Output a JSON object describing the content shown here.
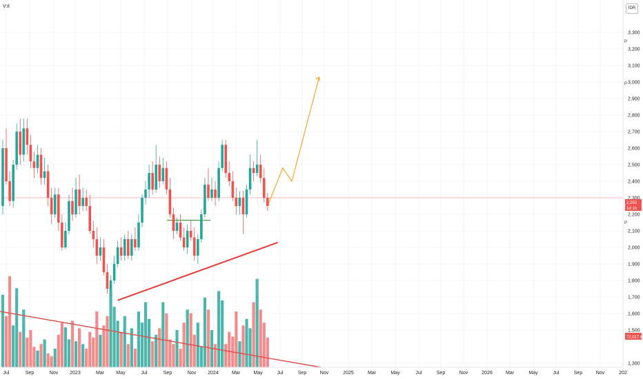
{
  "volume_label": "Vol",
  "currency_button": "IDR",
  "colors": {
    "up": "#26a69a",
    "down": "#ef5350",
    "vol_up": "#4db6ac",
    "vol_down": "#f28b8b",
    "projection": "#f5a623",
    "support": "#e53935",
    "flat_level": "#43a047",
    "price_line": "#f7b7b7"
  },
  "chart_data": {
    "type": "candlestick",
    "y_ticks": [
      "3,300",
      "3,200",
      "3,100",
      "3,000",
      "2,900",
      "2,800",
      "2,700",
      "2,600",
      "2,500",
      "2,400",
      "2,300",
      "2,200",
      "2,100",
      "2,000",
      "1,900",
      "1,800",
      "1,700",
      "1,600",
      "1,500",
      "1,300"
    ],
    "y_range": [
      1250,
      3400
    ],
    "x_ticks": [
      "Jul",
      "Sep",
      "Nov",
      "2023",
      "Mar",
      "May",
      "Jul",
      "Sep",
      "Nov",
      "2024",
      "Mar",
      "May",
      "Jul",
      "Sep",
      "Nov",
      "2025",
      "Mar",
      "May",
      "Jul",
      "Sep",
      "Nov",
      "2026",
      "Mar",
      "May",
      "Jul",
      "Sep",
      "Nov",
      "202"
    ],
    "current_price": "2,250",
    "current_price_sub": "1d 1h",
    "volume_value": "72.017 K",
    "candles": [
      [
        2250,
        2600,
        2650,
        2200
      ],
      [
        2600,
        2400,
        2720,
        2380
      ],
      [
        2400,
        2280,
        2460,
        2250
      ],
      [
        2280,
        2500,
        2530,
        2240
      ],
      [
        2500,
        2700,
        2750,
        2470
      ],
      [
        2700,
        2560,
        2780,
        2500
      ],
      [
        2560,
        2720,
        2780,
        2520
      ],
      [
        2720,
        2620,
        2780,
        2560
      ],
      [
        2620,
        2520,
        2680,
        2480
      ],
      [
        2520,
        2480,
        2580,
        2420
      ],
      [
        2480,
        2560,
        2620,
        2450
      ],
      [
        2560,
        2420,
        2600,
        2380
      ],
      [
        2420,
        2460,
        2540,
        2380
      ],
      [
        2460,
        2300,
        2500,
        2250
      ],
      [
        2300,
        2200,
        2360,
        2140
      ],
      [
        2200,
        2320,
        2360,
        2180
      ],
      [
        2320,
        2150,
        2360,
        2100
      ],
      [
        2150,
        2000,
        2200,
        1980
      ],
      [
        2000,
        2100,
        2150,
        1990
      ],
      [
        2100,
        2280,
        2320,
        2080
      ],
      [
        2280,
        2200,
        2360,
        2160
      ],
      [
        2200,
        2350,
        2420,
        2180
      ],
      [
        2350,
        2250,
        2440,
        2200
      ],
      [
        2250,
        2300,
        2360,
        2220
      ],
      [
        2300,
        2250,
        2350,
        2220
      ],
      [
        2250,
        2100,
        2320,
        2080
      ],
      [
        2100,
        2050,
        2160,
        2000
      ],
      [
        2050,
        1950,
        2120,
        1900
      ],
      [
        1950,
        2000,
        2060,
        1920
      ],
      [
        2000,
        1850,
        2050,
        1830
      ],
      [
        1850,
        1750,
        1900,
        1720
      ],
      [
        1750,
        1800,
        1830,
        1700
      ],
      [
        1800,
        1900,
        1950,
        1780
      ],
      [
        1900,
        2000,
        2040,
        1880
      ],
      [
        2000,
        1950,
        2060,
        1920
      ],
      [
        1950,
        2050,
        2080,
        1920
      ],
      [
        2050,
        1950,
        2100,
        1930
      ],
      [
        1950,
        2050,
        2080,
        1920
      ],
      [
        2050,
        2000,
        2120,
        1980
      ],
      [
        2000,
        2150,
        2200,
        1980
      ],
      [
        2150,
        2300,
        2320,
        2120
      ],
      [
        2300,
        2350,
        2400,
        2260
      ],
      [
        2350,
        2450,
        2500,
        2300
      ],
      [
        2450,
        2350,
        2520,
        2320
      ],
      [
        2350,
        2500,
        2620,
        2330
      ],
      [
        2500,
        2400,
        2550,
        2360
      ],
      [
        2400,
        2480,
        2540,
        2380
      ],
      [
        2480,
        2350,
        2520,
        2320
      ],
      [
        2350,
        2200,
        2420,
        2180
      ],
      [
        2200,
        2100,
        2240,
        2050
      ],
      [
        2100,
        2150,
        2180,
        2080
      ],
      [
        2150,
        2060,
        2200,
        2040
      ],
      [
        2060,
        2000,
        2120,
        1980
      ],
      [
        2000,
        2100,
        2140,
        1960
      ],
      [
        2100,
        2060,
        2160,
        2040
      ],
      [
        2060,
        1950,
        2120,
        1920
      ],
      [
        1950,
        2050,
        2080,
        1900
      ],
      [
        2050,
        2200,
        2230,
        2030
      ],
      [
        2200,
        2380,
        2420,
        2180
      ],
      [
        2380,
        2300,
        2480,
        2280
      ],
      [
        2300,
        2350,
        2420,
        2280
      ],
      [
        2350,
        2300,
        2400,
        2250
      ],
      [
        2300,
        2480,
        2520,
        2280
      ],
      [
        2480,
        2620,
        2650,
        2460
      ],
      [
        2620,
        2450,
        2650,
        2420
      ],
      [
        2450,
        2400,
        2520,
        2370
      ],
      [
        2400,
        2300,
        2460,
        2280
      ],
      [
        2300,
        2250,
        2360,
        2200
      ],
      [
        2250,
        2300,
        2340,
        2200
      ],
      [
        2300,
        2200,
        2340,
        2080
      ],
      [
        2200,
        2350,
        2380,
        2180
      ],
      [
        2350,
        2480,
        2560,
        2320
      ],
      [
        2480,
        2450,
        2520,
        2400
      ],
      [
        2450,
        2500,
        2650,
        2430
      ],
      [
        2500,
        2420,
        2560,
        2390
      ],
      [
        2420,
        2300,
        2480,
        2270
      ],
      [
        2300,
        2250,
        2330,
        2220
      ]
    ],
    "volume_heights": [
      0.78,
      0.55,
      0.98,
      0.45,
      0.85,
      0.38,
      0.62,
      0.32,
      0.4,
      0.22,
      0.18,
      0.25,
      0.3,
      0.15,
      0.12,
      0.2,
      0.35,
      0.48,
      0.43,
      0.3,
      0.5,
      0.28,
      0.42,
      0.25,
      0.2,
      0.38,
      0.32,
      0.6,
      0.35,
      0.45,
      0.55,
      0.85,
      0.65,
      0.5,
      0.38,
      0.55,
      0.25,
      0.42,
      0.2,
      0.6,
      0.48,
      0.7,
      0.52,
      0.28,
      0.35,
      0.42,
      0.7,
      0.58,
      0.3,
      0.25,
      0.4,
      0.2,
      0.48,
      0.62,
      0.58,
      0.35,
      0.48,
      0.22,
      0.75,
      0.62,
      0.4,
      0.25,
      0.82,
      0.72,
      0.25,
      0.38,
      0.33,
      0.6,
      0.28,
      0.45,
      0.52,
      0.42,
      0.7,
      0.95,
      0.62,
      0.48,
      0.32
    ],
    "annotations": {
      "projection": [
        [
          2250,
          0
        ],
        [
          2480,
          5
        ],
        [
          2400,
          8
        ],
        [
          3030,
          17
        ]
      ],
      "support_line": [
        [
          1680,
          0
        ],
        [
          2030,
          58
        ]
      ],
      "volume_trend": [
        [
          0.55,
          0
        ],
        [
          0.0,
          118
        ]
      ],
      "flat_level": 2160
    }
  }
}
